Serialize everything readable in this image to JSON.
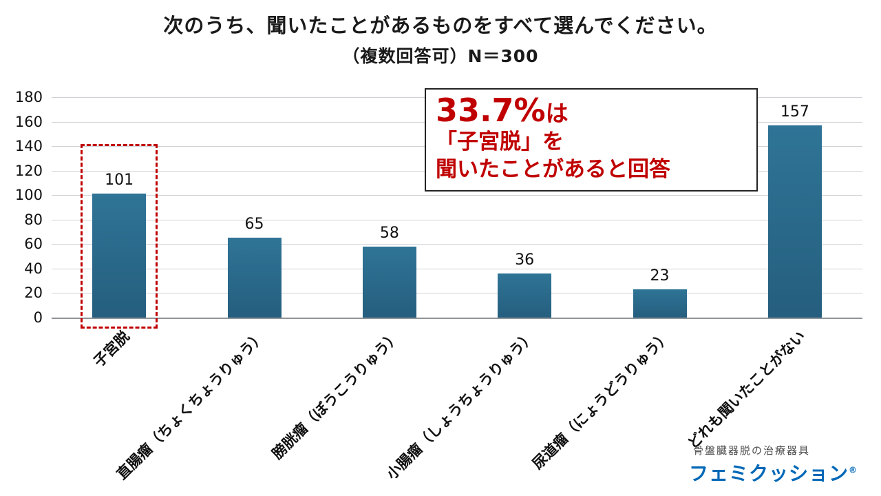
{
  "title": "次のうち、聞いたことがあるものをすべて選んでください。",
  "subtitle": "（複数回答可）N＝300",
  "chart_data": {
    "type": "bar",
    "categories": [
      "子宮脱",
      "直腸瘤（ちょくちょうりゅう）",
      "膀胱瘤（ぼうこうりゅう）",
      "小腸瘤（しょうちょうりゅう）",
      "尿道瘤（にょうどうりゅう）",
      "どれも聞いたことがない"
    ],
    "values": [
      101,
      65,
      58,
      36,
      23,
      157
    ],
    "ylim": [
      0,
      180
    ],
    "ytick_step": 20,
    "grid": true,
    "bar_color_top": "#2f7496",
    "bar_color_bottom": "#255e7e",
    "highlight_index": 0,
    "highlight_color": "#c00000",
    "legend": "none",
    "xlabel": "",
    "ylabel": ""
  },
  "annotation": {
    "big": "33.7%",
    "big_suffix": "は",
    "line2": "「子宮脱」を",
    "line3": "聞いたことがあると回答",
    "color": "#c00000"
  },
  "logo": {
    "tagline": "骨盤臓器脱の治療器具",
    "brand": "フェミクッション",
    "registered": "®",
    "color": "#0068b7"
  }
}
